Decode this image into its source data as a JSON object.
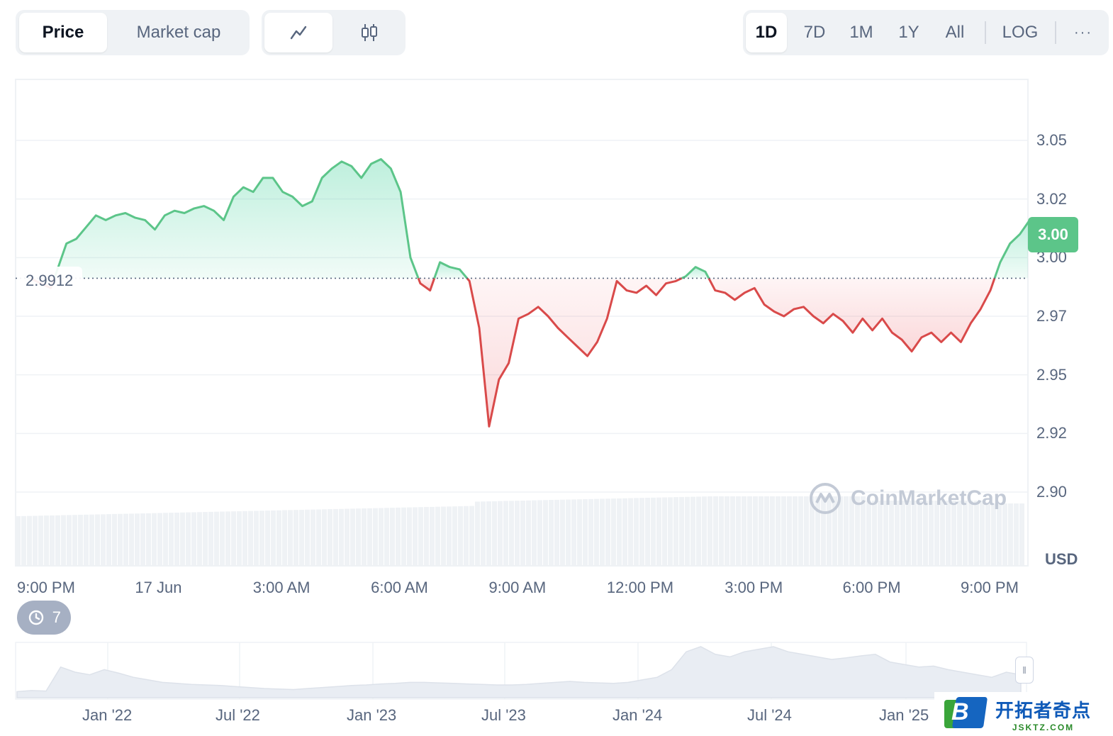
{
  "toolbar": {
    "metric_tabs": [
      {
        "label": "Price",
        "active": true
      },
      {
        "label": "Market cap",
        "active": false
      }
    ],
    "chart_type": {
      "active": "line",
      "icons": [
        "line-chart-icon",
        "candlestick-icon"
      ]
    },
    "ranges": [
      {
        "label": "1D",
        "active": true
      },
      {
        "label": "7D",
        "active": false
      },
      {
        "label": "1M",
        "active": false
      },
      {
        "label": "1Y",
        "active": false
      },
      {
        "label": "All",
        "active": false
      }
    ],
    "log_label": "LOG",
    "more_label": "···"
  },
  "chart_data": {
    "type": "line",
    "currency_label": "USD",
    "reference_price": 2.9912,
    "reference_label": "2.9912",
    "current_price_label": "3.00",
    "up_color": "#16c784",
    "down_color": "#ea3943",
    "y_ticks": [
      "3.05",
      "3.02",
      "3.00",
      "2.97",
      "2.95",
      "2.92",
      "2.90"
    ],
    "y_tick_values": [
      3.05,
      3.025,
      3.0,
      2.975,
      2.95,
      2.925,
      2.9
    ],
    "ylim": [
      2.885,
      3.07
    ],
    "x_ticks": [
      "9:00 PM",
      "17 Jun",
      "3:00 AM",
      "6:00 AM",
      "9:00 AM",
      "12:00 PM",
      "3:00 PM",
      "6:00 PM",
      "9:00 PM"
    ],
    "x_tick_hours": [
      0,
      3,
      6,
      9,
      12,
      15,
      18,
      21,
      24
    ],
    "series": [
      {
        "points": [
          [
            -0.8,
            2.991
          ],
          [
            0.2,
            2.987
          ],
          [
            0.5,
            2.994
          ],
          [
            1.0,
            3.006
          ],
          [
            1.5,
            3.008
          ],
          [
            2.0,
            3.013
          ],
          [
            2.5,
            3.018
          ],
          [
            3.0,
            3.016
          ],
          [
            3.5,
            3.018
          ],
          [
            4.0,
            3.019
          ],
          [
            4.5,
            3.017
          ],
          [
            5.0,
            3.016
          ],
          [
            5.5,
            3.012
          ],
          [
            6.0,
            3.018
          ],
          [
            6.5,
            3.02
          ],
          [
            7.0,
            3.019
          ],
          [
            7.5,
            3.021
          ],
          [
            8.0,
            3.022
          ],
          [
            8.5,
            3.02
          ],
          [
            9.0,
            3.016
          ],
          [
            9.5,
            3.026
          ],
          [
            10.0,
            3.03
          ],
          [
            10.5,
            3.028
          ],
          [
            11.0,
            3.034
          ],
          [
            11.5,
            3.034
          ],
          [
            12.0,
            3.028
          ],
          [
            12.5,
            3.026
          ],
          [
            13.0,
            3.022
          ],
          [
            13.5,
            3.024
          ],
          [
            14.0,
            3.034
          ],
          [
            14.5,
            3.038
          ],
          [
            15.0,
            3.041
          ],
          [
            15.5,
            3.039
          ],
          [
            16.0,
            3.034
          ],
          [
            16.5,
            3.04
          ],
          [
            17.0,
            3.042
          ],
          [
            17.5,
            3.038
          ],
          [
            18.0,
            3.028
          ],
          [
            18.5,
            3.0
          ],
          [
            19.0,
            2.989
          ],
          [
            19.5,
            2.986
          ],
          [
            20.0,
            2.998
          ],
          [
            20.5,
            2.996
          ],
          [
            21.0,
            2.995
          ],
          [
            21.5,
            2.99
          ],
          [
            22.0,
            2.97
          ],
          [
            22.5,
            2.928
          ],
          [
            23.0,
            2.948
          ],
          [
            23.5,
            2.955
          ],
          [
            24.0,
            2.974
          ],
          [
            24.5,
            2.976
          ],
          [
            25.0,
            2.979
          ],
          [
            25.5,
            2.975
          ],
          [
            26.0,
            2.97
          ],
          [
            26.5,
            2.966
          ],
          [
            27.0,
            2.962
          ],
          [
            27.5,
            2.958
          ],
          [
            28.0,
            2.964
          ],
          [
            28.5,
            2.974
          ],
          [
            29.0,
            2.99
          ],
          [
            29.5,
            2.986
          ],
          [
            30.0,
            2.985
          ],
          [
            30.5,
            2.988
          ],
          [
            31.0,
            2.984
          ],
          [
            31.5,
            2.989
          ],
          [
            32.0,
            2.99
          ],
          [
            32.5,
            2.992
          ],
          [
            33.0,
            2.996
          ],
          [
            33.5,
            2.994
          ],
          [
            34.0,
            2.986
          ],
          [
            34.5,
            2.985
          ],
          [
            35.0,
            2.982
          ],
          [
            35.5,
            2.985
          ],
          [
            36.0,
            2.987
          ],
          [
            36.5,
            2.98
          ],
          [
            37.0,
            2.977
          ],
          [
            37.5,
            2.975
          ],
          [
            38.0,
            2.978
          ],
          [
            38.5,
            2.979
          ],
          [
            39.0,
            2.975
          ],
          [
            39.5,
            2.972
          ],
          [
            40.0,
            2.976
          ],
          [
            40.5,
            2.973
          ],
          [
            41.0,
            2.968
          ],
          [
            41.5,
            2.974
          ],
          [
            42.0,
            2.969
          ],
          [
            42.5,
            2.974
          ],
          [
            43.0,
            2.968
          ],
          [
            43.5,
            2.965
          ],
          [
            44.0,
            2.96
          ],
          [
            44.5,
            2.966
          ],
          [
            45.0,
            2.968
          ],
          [
            45.5,
            2.964
          ],
          [
            46.0,
            2.968
          ],
          [
            46.5,
            2.964
          ],
          [
            47.0,
            2.972
          ],
          [
            47.5,
            2.978
          ],
          [
            48.0,
            2.986
          ],
          [
            48.5,
            2.998
          ],
          [
            49.0,
            3.006
          ],
          [
            49.5,
            3.01
          ],
          [
            50.0,
            3.016
          ],
          [
            50.5,
            3.011
          ],
          [
            51.0,
            3.005
          ]
        ]
      }
    ],
    "overview": {
      "x_ticks": [
        "Jan '22",
        "Jul '22",
        "Jan '23",
        "Jul '23",
        "Jan '24",
        "Jul '24",
        "Jan '25"
      ],
      "values": [
        0.12,
        0.14,
        0.13,
        0.6,
        0.5,
        0.45,
        0.55,
        0.48,
        0.4,
        0.35,
        0.3,
        0.28,
        0.26,
        0.25,
        0.24,
        0.22,
        0.2,
        0.18,
        0.17,
        0.16,
        0.18,
        0.2,
        0.22,
        0.24,
        0.25,
        0.27,
        0.28,
        0.3,
        0.3,
        0.29,
        0.28,
        0.27,
        0.26,
        0.25,
        0.25,
        0.26,
        0.28,
        0.3,
        0.32,
        0.3,
        0.29,
        0.28,
        0.3,
        0.35,
        0.4,
        0.55,
        0.9,
        1.0,
        0.85,
        0.8,
        0.9,
        0.95,
        1.0,
        0.9,
        0.85,
        0.8,
        0.75,
        0.78,
        0.82,
        0.85,
        0.7,
        0.65,
        0.6,
        0.62,
        0.55,
        0.5,
        0.45,
        0.4,
        0.5,
        0.45
      ]
    }
  },
  "watermark": "CoinMarketCap",
  "history_count": "7",
  "site_logo": {
    "letter": "B",
    "name": "开拓者奇点",
    "domain": "JSKTZ.COM"
  }
}
